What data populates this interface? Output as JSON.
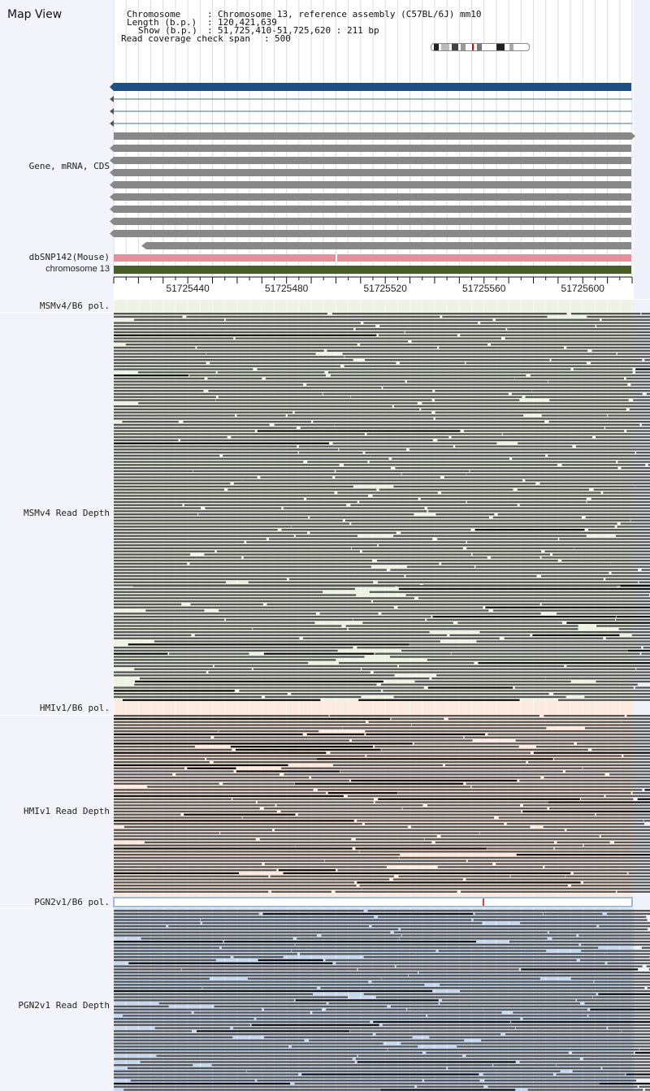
{
  "title": "Map View",
  "header": {
    "chromosome_key": "Chromosome",
    "chromosome_val": "Chromosome 13, reference assembly (C57BL/6J) mm10",
    "length_key": "Length (b.p.)",
    "length_val": "120,421,639",
    "show_key": "Show (b.p.)",
    "show_val": "51,725,410-51,725,620 : 211 bp",
    "read_span_key": "Read coverage check span",
    "read_span_val": "500"
  },
  "tracks": {
    "gene": "Gene, mRNA, CDS",
    "dbsnp": "dbSNP142(Mouse)",
    "chromosome": "chromosome 13",
    "msm_pol": "MSMv4/B6 pol.",
    "msm_depth": "MSMv4 Read Depth",
    "hmi_pol": "HMIv1/B6 pol.",
    "hmi_depth": "HMIv1 Read Depth",
    "pgn_pol": "PGN2v1/B6 pol.",
    "pgn_depth": "PGN2v1 Read Depth"
  },
  "ruler": {
    "start": 51725410,
    "end": 51725620,
    "labels": [
      "51725440",
      "51725480",
      "51725520",
      "51725560",
      "51725600"
    ]
  },
  "colors": {
    "panel": "#f3f4fb",
    "gene_main": "#1f4e80",
    "gene_gray": "#888888",
    "snp": "#e8909a",
    "chrom": "#4a5e2a",
    "msm_bg": "#eef2e3",
    "hmi_bg": "#fdeade",
    "pgn_bg": "#c7d7ee",
    "read": "#555555",
    "read_dark": "#111111"
  }
}
